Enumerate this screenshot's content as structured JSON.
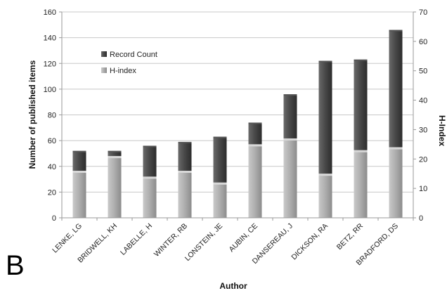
{
  "panel_label": "B",
  "colors": {
    "record_top": "#555555",
    "record_mid": "#3a3a3a",
    "hindex_top": "#d8d8d8",
    "hindex_mid": "#a9a9a9",
    "axis": "#9a9a9a",
    "grid": "#c8c8c8"
  },
  "chart_data": {
    "type": "bar",
    "stacking": "overlay",
    "title": "",
    "xlabel": "Author",
    "ylabel": "Number of published items",
    "y2label": "H-Index",
    "ylim": [
      0,
      160
    ],
    "y2lim": [
      0,
      70
    ],
    "yticks": [
      0,
      20,
      40,
      60,
      80,
      100,
      120,
      140,
      160
    ],
    "y2ticks": [
      0,
      10,
      20,
      30,
      40,
      50,
      60,
      70
    ],
    "grid": true,
    "legend_position": "upper-left",
    "categories": [
      "LENKE, LG",
      "BRIDWELL, KH",
      "LABELLE, H",
      "WINTER, RB",
      "LONSTEIN, JE",
      "AUBIN, CE",
      "DANSEREAU, J",
      "DICKSON, RA",
      "BETZ, RR",
      "BRADFORD, DS"
    ],
    "series": [
      {
        "name": "Record Count",
        "axis": "left",
        "values": [
          52,
          52,
          56,
          59,
          63,
          74,
          96,
          122,
          123,
          146
        ]
      },
      {
        "name": "H-index",
        "axis": "right",
        "values": [
          16,
          21,
          14,
          16,
          12,
          25,
          27,
          15,
          23,
          24
        ]
      }
    ]
  }
}
